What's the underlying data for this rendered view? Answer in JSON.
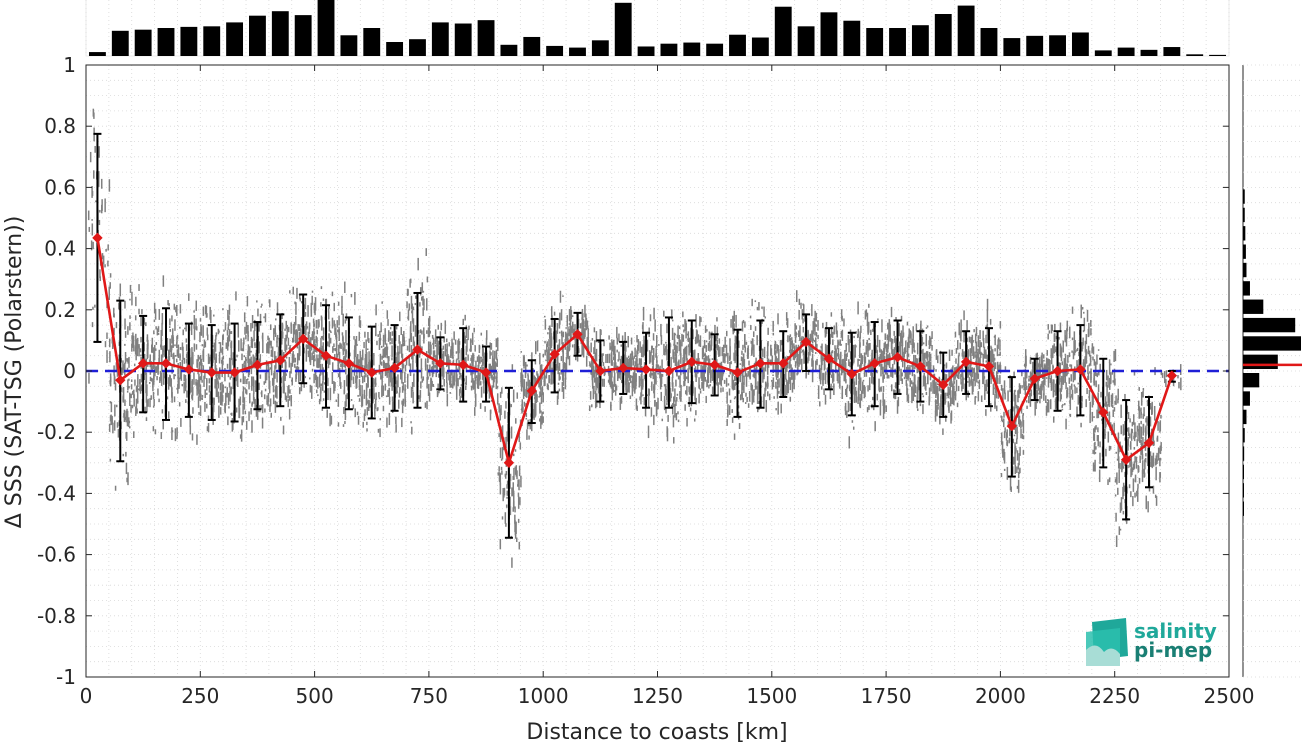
{
  "chart_data": {
    "type": "scatter",
    "title": "",
    "xlabel": "Distance to coasts [km]",
    "ylabel": "Δ SSS (SAT-TSG (Polarstern))",
    "xlim": [
      0,
      2500
    ],
    "ylim": [
      -1,
      1
    ],
    "xticks": [
      "0",
      "250",
      "500",
      "750",
      "1000",
      "1250",
      "1500",
      "1750",
      "2000",
      "2250",
      "2500"
    ],
    "yticks": [
      "1",
      "0.8",
      "0.6",
      "0.4",
      "0.2",
      "0",
      "-0.2",
      "-0.4",
      "-0.6",
      "-0.8",
      "-1"
    ],
    "grid": true,
    "reference_line": {
      "y": 0,
      "style": "dashed",
      "color": "#1f1fd6"
    },
    "mean_series": {
      "color": "#e01818",
      "x": [
        25,
        75,
        125,
        175,
        225,
        275,
        325,
        375,
        425,
        475,
        525,
        575,
        625,
        675,
        725,
        775,
        825,
        875,
        925,
        975,
        1025,
        1075,
        1125,
        1175,
        1225,
        1275,
        1325,
        1375,
        1425,
        1475,
        1525,
        1575,
        1625,
        1675,
        1725,
        1775,
        1825,
        1875,
        1925,
        1975,
        2025,
        2075,
        2125,
        2175,
        2225,
        2275,
        2325,
        2375
      ],
      "y": [
        0.435,
        -0.03,
        0.025,
        0.025,
        0.005,
        -0.005,
        -0.005,
        0.02,
        0.035,
        0.105,
        0.05,
        0.025,
        -0.005,
        0.01,
        0.07,
        0.025,
        0.02,
        -0.005,
        -0.3,
        -0.065,
        0.055,
        0.12,
        0.0,
        0.01,
        0.005,
        0.0,
        0.03,
        0.02,
        -0.005,
        0.025,
        0.025,
        0.095,
        0.04,
        -0.01,
        0.025,
        0.045,
        0.015,
        -0.045,
        0.03,
        0.015,
        -0.18,
        -0.025,
        0.0,
        0.005,
        -0.135,
        -0.29,
        -0.235,
        -0.015
      ],
      "err_low": [
        0.095,
        -0.295,
        -0.135,
        -0.16,
        -0.15,
        -0.16,
        -0.165,
        -0.125,
        -0.115,
        -0.04,
        -0.12,
        -0.125,
        -0.155,
        -0.13,
        -0.12,
        -0.06,
        -0.1,
        -0.1,
        -0.545,
        -0.17,
        -0.07,
        0.05,
        -0.1,
        -0.075,
        -0.12,
        -0.12,
        -0.105,
        -0.08,
        -0.15,
        -0.12,
        -0.085,
        0.0,
        -0.06,
        -0.145,
        -0.115,
        -0.075,
        -0.1,
        -0.15,
        -0.075,
        -0.115,
        -0.345,
        -0.095,
        -0.13,
        -0.145,
        -0.315,
        -0.485,
        -0.38,
        -0.035
      ],
      "err_high": [
        0.775,
        0.23,
        0.18,
        0.205,
        0.155,
        0.15,
        0.155,
        0.16,
        0.185,
        0.25,
        0.215,
        0.175,
        0.145,
        0.15,
        0.255,
        0.11,
        0.14,
        0.08,
        -0.055,
        0.035,
        0.17,
        0.19,
        0.1,
        0.095,
        0.125,
        0.175,
        0.165,
        0.12,
        0.135,
        0.165,
        0.13,
        0.185,
        0.14,
        0.125,
        0.16,
        0.165,
        0.13,
        0.06,
        0.13,
        0.14,
        -0.02,
        0.04,
        0.13,
        0.15,
        0.04,
        -0.095,
        -0.085,
        0.0
      ]
    },
    "top_histogram": {
      "bin_width": 50,
      "values": [
        0.07,
        0.45,
        0.47,
        0.5,
        0.52,
        0.53,
        0.6,
        0.72,
        0.8,
        0.73,
        1.0,
        0.37,
        0.5,
        0.25,
        0.3,
        0.6,
        0.58,
        0.64,
        0.2,
        0.34,
        0.18,
        0.15,
        0.28,
        0.95,
        0.17,
        0.22,
        0.24,
        0.22,
        0.38,
        0.33,
        0.88,
        0.53,
        0.78,
        0.63,
        0.5,
        0.5,
        0.55,
        0.75,
        0.9,
        0.5,
        0.32,
        0.36,
        0.37,
        0.42,
        0.1,
        0.15,
        0.11,
        0.16,
        0.03,
        0.02
      ]
    },
    "right_histogram": {
      "bin_edges": [
        0.6,
        0.54,
        0.48,
        0.42,
        0.36,
        0.3,
        0.24,
        0.18,
        0.12,
        0.06,
        0.0,
        -0.06,
        -0.12,
        -0.18,
        -0.24,
        -0.3,
        -0.36,
        -0.42,
        -0.48
      ],
      "values": [
        0.03,
        0.03,
        0.04,
        0.05,
        0.06,
        0.12,
        0.35,
        0.9,
        1.0,
        0.6,
        0.28,
        0.12,
        0.06,
        0.03,
        0.02,
        0.01,
        0.01,
        0.005
      ],
      "median_line_y": 0.02,
      "median_line_color": "#e01818"
    }
  },
  "logo": {
    "line1": "salinity",
    "line2": "pi-mep",
    "color": "#1fa89a"
  },
  "colors": {
    "scatter": "#808080",
    "bars": "#000000",
    "errorbars": "#000000"
  }
}
